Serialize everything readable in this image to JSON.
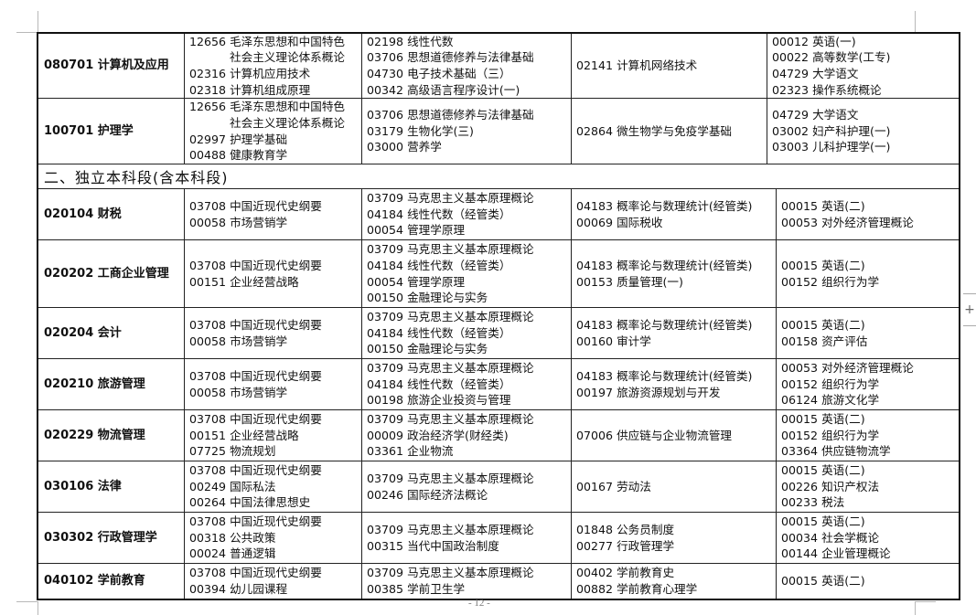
{
  "page_number": "- 12 -",
  "zoom_button_icon": "plus-icon",
  "zoom_button_label": "+",
  "rows_top": [
    {
      "major": "080701 计算机及应用",
      "cols": [
        [
          "12656 毛泽东思想和中国特色",
          "社会主义理论体系概论",
          "02316 计算机应用技术",
          "02318 计算机组成原理"
        ],
        [
          "02198 线性代数",
          "03706 思想道德修养与法律基础",
          "04730 电子技术基础（三）",
          "00342 高级语言程序设计(一)"
        ],
        [
          "02141 计算机网络技术"
        ],
        [
          "00012 英语(一)",
          "00022 高等数学(工专)",
          "04729 大学语文",
          "02323 操作系统概论"
        ]
      ]
    },
    {
      "major": "100701 护理学",
      "cols": [
        [
          "12656 毛泽东思想和中国特色",
          "社会主义理论体系概论",
          "02997 护理学基础",
          "00488 健康教育学"
        ],
        [
          "03706 思想道德修养与法律基础",
          "03179 生物化学(三)",
          "03000 营养学"
        ],
        [
          "02864 微生物学与免疫学基础"
        ],
        [
          "04729 大学语文",
          "03002 妇产科护理(一)",
          "03003 儿科护理学(一)"
        ]
      ]
    }
  ],
  "section_title": "二、独立本科段(含本科段)",
  "rows_bottom": [
    {
      "major": "020104 财税",
      "cols": [
        [
          "03708 中国近现代史纲要",
          "00058 市场营销学"
        ],
        [
          "03709 马克思主义基本原理概论",
          "04184 线性代数（经管类）",
          "00054 管理学原理"
        ],
        [
          "04183 概率论与数理统计(经管类)",
          "00069 国际税收"
        ],
        [
          "00015 英语(二)",
          "00053 对外经济管理概论"
        ]
      ]
    },
    {
      "major": "020202 工商企业管理",
      "cols": [
        [
          "03708 中国近现代史纲要",
          "00151 企业经营战略"
        ],
        [
          "03709 马克思主义基本原理概论",
          "04184 线性代数（经管类）",
          "00054 管理学原理",
          "00150 金融理论与实务"
        ],
        [
          "04183 概率论与数理统计(经管类)",
          "00153 质量管理(一)"
        ],
        [
          "00015 英语(二)",
          "00152 组织行为学"
        ]
      ]
    },
    {
      "major": "020204 会计",
      "cols": [
        [
          "03708 中国近现代史纲要",
          "00058 市场营销学"
        ],
        [
          "03709 马克思主义基本原理概论",
          "04184 线性代数（经管类）",
          "00150 金融理论与实务"
        ],
        [
          "04183 概率论与数理统计(经管类)",
          "00160 审计学"
        ],
        [
          "00015 英语(二)",
          "00158 资产评估"
        ]
      ]
    },
    {
      "major": "020210 旅游管理",
      "cols": [
        [
          "03708 中国近现代史纲要",
          "00058 市场营销学"
        ],
        [
          "03709 马克思主义基本原理概论",
          "04184 线性代数（经管类）",
          "00198 旅游企业投资与管理"
        ],
        [
          "04183 概率论与数理统计(经管类)",
          "00197 旅游资源规划与开发"
        ],
        [
          "00053 对外经济管理概论",
          "00152 组织行为学",
          "06124 旅游文化学"
        ]
      ]
    },
    {
      "major": "020229 物流管理",
      "cols": [
        [
          "03708 中国近现代史纲要",
          "00151 企业经营战略",
          "07725 物流规划"
        ],
        [
          "03709 马克思主义基本原理概论",
          "00009 政治经济学(财经类)",
          "03361 企业物流"
        ],
        [
          "07006 供应链与企业物流管理"
        ],
        [
          "00015 英语(二)",
          "00152 组织行为学",
          "03364 供应链物流学"
        ]
      ]
    },
    {
      "major": "030106 法律",
      "cols": [
        [
          "03708 中国近现代史纲要",
          "00249 国际私法",
          "00264 中国法律思想史"
        ],
        [
          "03709 马克思主义基本原理概论",
          "00246 国际经济法概论"
        ],
        [
          "00167 劳动法"
        ],
        [
          "00015 英语(二)",
          "00226 知识产权法",
          "00233 税法"
        ]
      ]
    },
    {
      "major": "030302 行政管理学",
      "cols": [
        [
          "03708 中国近现代史纲要",
          "00318 公共政策",
          "00024 普通逻辑"
        ],
        [
          "03709 马克思主义基本原理概论",
          "00315 当代中国政治制度"
        ],
        [
          "01848 公务员制度",
          "00277 行政管理学"
        ],
        [
          "00015 英语(二)",
          "00034 社会学概论",
          "00144 企业管理概论"
        ]
      ]
    },
    {
      "major": "040102 学前教育",
      "cols": [
        [
          "03708 中国近现代史纲要",
          "00394 幼儿园课程"
        ],
        [
          "03709 马克思主义基本原理概论",
          "00385 学前卫生学"
        ],
        [
          "00402 学前教育史",
          "00882 学前教育心理学"
        ],
        [
          "00015 英语(二)"
        ]
      ]
    }
  ]
}
